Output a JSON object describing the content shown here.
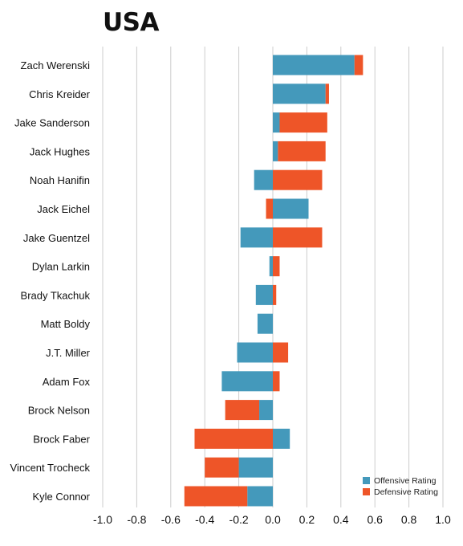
{
  "title": "USA",
  "chart_data": {
    "type": "bar",
    "orientation": "horizontal",
    "stacked": true,
    "title": "USA",
    "categories": [
      "Zach Werenski",
      "Chris Kreider",
      "Jake Sanderson",
      "Jack Hughes",
      "Noah Hanifin",
      "Jack Eichel",
      "Jake Guentzel",
      "Dylan Larkin",
      "Brady Tkachuk",
      "Matt Boldy",
      "J.T. Miller",
      "Adam Fox",
      "Brock Nelson",
      "Brock Faber",
      "Vincent Trocheck",
      "Kyle Connor"
    ],
    "series": [
      {
        "name": "Offensive Rating",
        "color": "#4499bb",
        "values": [
          0.48,
          0.31,
          0.04,
          0.03,
          -0.11,
          0.21,
          -0.19,
          -0.02,
          -0.1,
          -0.09,
          -0.21,
          -0.3,
          -0.08,
          0.1,
          -0.2,
          -0.15
        ]
      },
      {
        "name": "Defensive Rating",
        "color": "#ee5528",
        "values": [
          0.05,
          0.02,
          0.28,
          0.28,
          0.29,
          -0.04,
          0.29,
          0.04,
          0.02,
          0.0,
          0.09,
          0.04,
          -0.2,
          -0.46,
          -0.2,
          -0.37
        ]
      }
    ],
    "xlim": [
      -1.0,
      1.0
    ],
    "xticks": [
      "-1.0",
      "-0.8",
      "-0.6",
      "-0.4",
      "-0.2",
      "0.0",
      "0.2",
      "0.4",
      "0.6",
      "0.8",
      "1.0"
    ],
    "xlabel": "",
    "ylabel": "",
    "grid": "vertical",
    "legend": "bottom-right"
  }
}
